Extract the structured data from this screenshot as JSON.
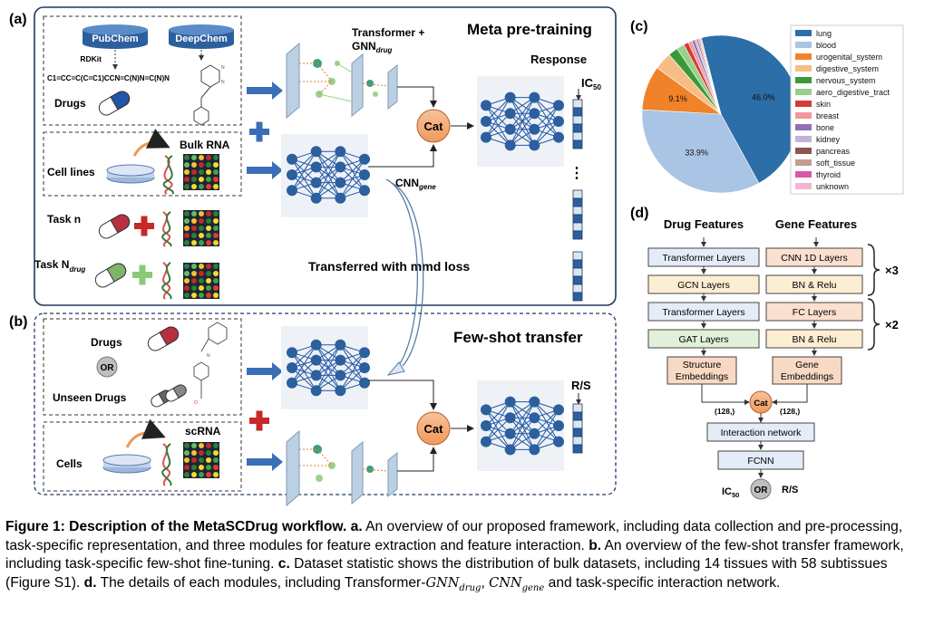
{
  "panel_a": {
    "label": "(a)",
    "title": "Meta pre-training",
    "pubchem": "PubChem",
    "deepchem": "DeepChem",
    "rdkit": "RDKit",
    "smiles": "C1=CC=C(C=C1)CCN=C(N)N=C(N)N",
    "drugs": "Drugs",
    "cell_lines": "Cell lines",
    "bulk_rna": "Bulk RNA",
    "task_n": "Task n",
    "task_N_main": "Task N",
    "task_N_sub": "drug",
    "gnn_line1": "Transformer +",
    "gnn_main": "GNN",
    "gnn_sub": "drug",
    "cnn_main": "CNN",
    "cnn_sub": "gene",
    "cat": "Cat",
    "response": "Response",
    "ic50_main": "IC",
    "ic50_sub": "50",
    "ellipsis": "⋮",
    "transfer": "Transferred with mmd loss"
  },
  "panel_b": {
    "label": "(b)",
    "title": "Few-shot transfer",
    "drugs": "Drugs",
    "or": "OR",
    "unseen": "Unseen Drugs",
    "cells": "Cells",
    "scrna": "scRNA",
    "cat": "Cat",
    "rs": "R/S"
  },
  "panel_c": {
    "label": "(c)"
  },
  "chart_data": {
    "type": "pie",
    "slices": [
      {
        "label": "lung",
        "value": 46.0,
        "color": "#2b6ea8",
        "pct_label": "46.0%"
      },
      {
        "label": "blood",
        "value": 33.9,
        "color": "#a9c4e4",
        "pct_label": "33.9%"
      },
      {
        "label": "urogenital_system",
        "value": 9.1,
        "color": "#f0822a",
        "pct_label": "9.1%"
      },
      {
        "label": "digestive_system",
        "value": 3.6,
        "color": "#f8bd84",
        "pct_label": ""
      },
      {
        "label": "nervous_system",
        "value": 2.0,
        "color": "#3a9a3a",
        "pct_label": ""
      },
      {
        "label": "aero_digestive_tract",
        "value": 1.6,
        "color": "#98d088",
        "pct_label": ""
      },
      {
        "label": "skin",
        "value": 1.0,
        "color": "#d63a3a",
        "pct_label": ""
      },
      {
        "label": "breast",
        "value": 0.8,
        "color": "#f3999a",
        "pct_label": ""
      },
      {
        "label": "bone",
        "value": 0.6,
        "color": "#8f6fb8",
        "pct_label": ""
      },
      {
        "label": "kidney",
        "value": 0.4,
        "color": "#c2b2d8",
        "pct_label": ""
      },
      {
        "label": "pancreas",
        "value": 0.3,
        "color": "#8c564b",
        "pct_label": ""
      },
      {
        "label": "soft_tissue",
        "value": 0.3,
        "color": "#c49c94",
        "pct_label": ""
      },
      {
        "label": "thyroid",
        "value": 0.2,
        "color": "#d957a8",
        "pct_label": ""
      },
      {
        "label": "unknown",
        "value": 0.2,
        "color": "#f1b6d2",
        "pct_label": ""
      }
    ],
    "legend_position": "right"
  },
  "panel_d": {
    "label": "(d)",
    "drug_features": "Drug Features",
    "gene_features": "Gene Features",
    "transformer_layers": "Transformer Layers",
    "gcn_layers": "GCN Layers",
    "gat_layers": "GAT Layers",
    "cnn1d_layers": "CNN 1D Layers",
    "bn_relu": "BN & Relu",
    "fc_layers": "FC Layers",
    "x3": "×3",
    "x2": "×2",
    "structure_emb_1": "Structure",
    "structure_emb_2": "Embeddings",
    "gene_emb_1": "Gene",
    "gene_emb_2": "Embeddings",
    "dim_128": "(128,)",
    "cat": "Cat",
    "interaction": "Interaction network",
    "fcnn": "FCNN",
    "ic50_main": "IC",
    "ic50_sub": "50",
    "or": "OR",
    "rs": "R/S"
  },
  "caption": {
    "fig_label": "Figure 1: Description of the MetaSCDrug workflow.",
    "a_key": "a.",
    "a_text": "An overview of our proposed framework, including data collection and pre-processing, task-specific representation, and three modules for feature extraction and feature interaction.",
    "b_key": "b.",
    "b_text": "An overview of the few-shot transfer framework, including task-specific few-shot fine-tuning.",
    "c_key": "c.",
    "c_text": "Dataset statistic shows the distribution of bulk datasets, including 14 tissues with 58 subtissues (Figure S1).",
    "d_key": "d.",
    "d_text": "The details of each modules, including Transformer-",
    "gnn_main": "GNN",
    "gnn_sub": "drug",
    "comma": ",",
    "cnn_main": "CNN",
    "cnn_sub": "gene",
    "tail": "and task-specific interaction network."
  }
}
